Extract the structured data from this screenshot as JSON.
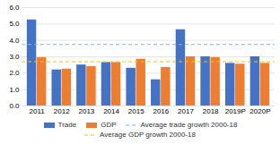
{
  "chart_data": {
    "type": "bar",
    "categories": [
      "2011",
      "2012",
      "2013",
      "2014",
      "2015",
      "2016",
      "2017",
      "2018",
      "2019P",
      "2020P"
    ],
    "series": [
      {
        "name": "Trade",
        "color": "#4472c4",
        "values": [
          5.25,
          2.2,
          2.5,
          2.65,
          2.3,
          1.6,
          4.65,
          3.0,
          2.6,
          3.0
        ]
      },
      {
        "name": "GDP",
        "color": "#ed7d31",
        "values": [
          2.95,
          2.25,
          2.4,
          2.65,
          2.85,
          2.35,
          3.0,
          2.95,
          2.55,
          2.6
        ]
      }
    ],
    "reference_lines": [
      {
        "name": "Average trade growth 2000-18",
        "value": 3.75,
        "color": "#70c0dc",
        "line_style": "dashed"
      },
      {
        "name": "Average GDP growth 2000-18",
        "value": 2.7,
        "color": "#ffc000",
        "line_style": "dashed"
      }
    ],
    "ylim": [
      0,
      6.0
    ],
    "yticks": [
      {
        "value": 0,
        "label": "0.0"
      },
      {
        "value": 1,
        "label": "1.0"
      },
      {
        "value": 2,
        "label": "2.0"
      },
      {
        "value": 3,
        "label": "3.0"
      },
      {
        "value": 4,
        "label": "4.0"
      },
      {
        "value": 5,
        "label": "5.0"
      },
      {
        "value": 6,
        "label": "6.0"
      }
    ],
    "grid": true,
    "legend": "bottom"
  }
}
